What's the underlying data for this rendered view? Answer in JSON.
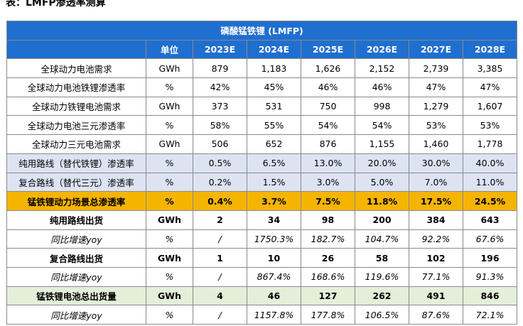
{
  "title": "表：LMFP渗透率测算",
  "table": {
    "top_header": "磷酸锰铁锂 (LMFP)",
    "columns": [
      "",
      "单位",
      "2023E",
      "2024E",
      "2025E",
      "2026E",
      "2027E",
      "2028E"
    ],
    "rows": [
      {
        "label": "全球动力电池需求",
        "unit": "GWh",
        "values": [
          "879",
          "1,183",
          "1,626",
          "2,152",
          "2,739",
          "3,385"
        ]
      },
      {
        "label": "全球动力电池铁锂渗透率",
        "unit": "%",
        "values": [
          "42%",
          "45%",
          "46%",
          "46%",
          "47%",
          "47%"
        ]
      },
      {
        "label": "全球动力铁锂电池需求",
        "unit": "GWh",
        "values": [
          "373",
          "531",
          "750",
          "998",
          "1,279",
          "1,607"
        ]
      },
      {
        "label": "全球动力电池三元渗透率",
        "unit": "%",
        "values": [
          "58%",
          "55%",
          "54%",
          "54%",
          "53%",
          "53%"
        ]
      },
      {
        "label": "全球动力三元电池需求",
        "unit": "GWh",
        "values": [
          "506",
          "652",
          "876",
          "1,155",
          "1,460",
          "1,778"
        ]
      },
      {
        "label": "纯用路线（替代铁锂）渗透率",
        "unit": "%",
        "values": [
          "0.5%",
          "6.5%",
          "13.0%",
          "20.0%",
          "30.0%",
          "40.0%"
        ]
      },
      {
        "label": "复合路线（替代三元）渗透率",
        "unit": "%",
        "values": [
          "0.2%",
          "1.5%",
          "3.0%",
          "5.0%",
          "7.0%",
          "11.0%"
        ]
      },
      {
        "label": "锰铁锂动力场景总渗透率",
        "unit": "%",
        "values": [
          "0.4%",
          "3.7%",
          "7.5%",
          "11.8%",
          "17.5%",
          "24.5%"
        ]
      },
      {
        "label": "纯用路线出货",
        "unit": "GWh",
        "values": [
          "2",
          "34",
          "98",
          "200",
          "384",
          "643"
        ]
      },
      {
        "label": "同比增速yoy",
        "unit": "%",
        "values": [
          "/",
          "1750.3%",
          "182.7%",
          "104.7%",
          "92.2%",
          "67.6%"
        ]
      },
      {
        "label": "复合路线出货",
        "unit": "GWh",
        "values": [
          "1",
          "10",
          "26",
          "58",
          "102",
          "196"
        ]
      },
      {
        "label": "同比增速yoy",
        "unit": "%",
        "values": [
          "/",
          "867.4%",
          "168.6%",
          "119.6%",
          "77.1%",
          "91.3%"
        ]
      },
      {
        "label": "锰铁锂电池总出货量",
        "unit": "GWh",
        "values": [
          "4",
          "46",
          "127",
          "262",
          "491",
          "846"
        ]
      },
      {
        "label": "同比增速yoy",
        "unit": "%",
        "values": [
          "/",
          "1157.8%",
          "177.8%",
          "106.5%",
          "87.6%",
          "72.1%"
        ]
      }
    ]
  },
  "colors": {
    "header_blue": "#1f6fd0",
    "lavender": "#dce3f3",
    "orange": "#f5b400",
    "green": "#e3efd9"
  }
}
